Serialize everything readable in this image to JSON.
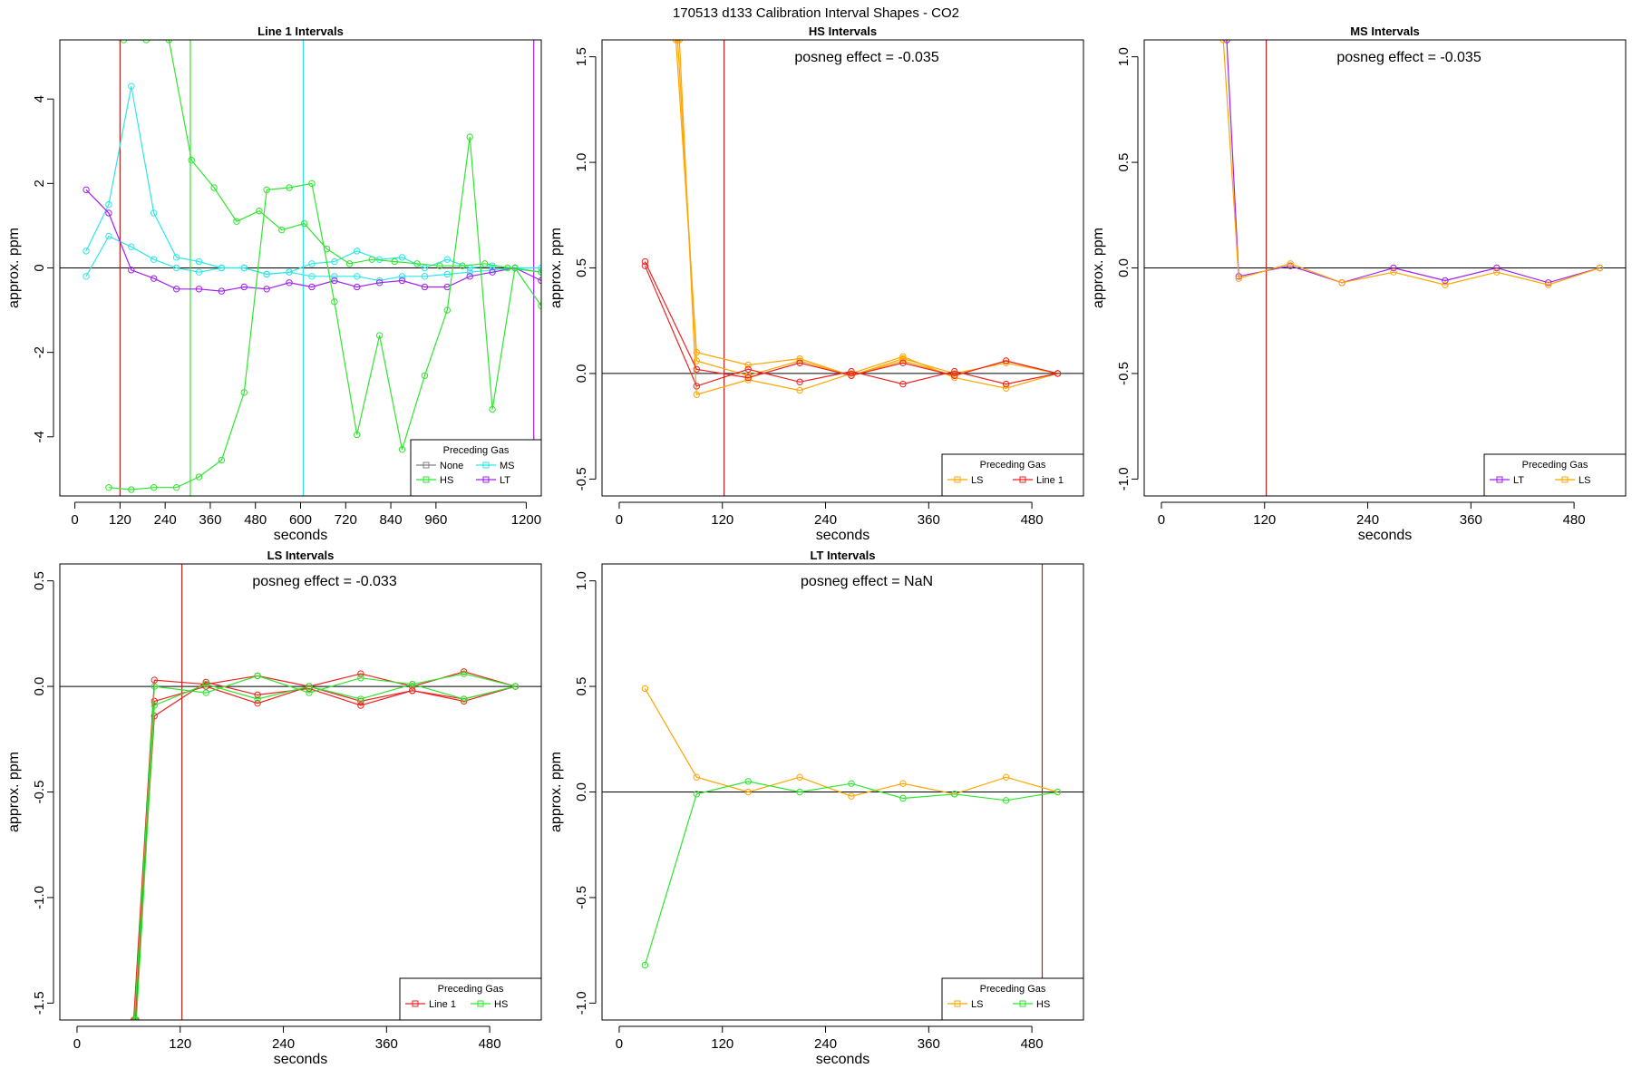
{
  "figure": {
    "title": "170513  d133   Calibration Interval Shapes - CO2"
  },
  "chart_data": [
    {
      "type": "line",
      "title": "Line 1 Intervals",
      "xlabel": "seconds",
      "ylabel": "approx. ppm",
      "xlim": [
        -40,
        1240
      ],
      "ylim": [
        -5.4,
        5.4
      ],
      "xticks": [
        0,
        120,
        240,
        360,
        480,
        600,
        720,
        840,
        960,
        1200
      ],
      "xtick_labels": [
        "0",
        "120",
        "240",
        "360",
        "480",
        "600",
        "720",
        "840",
        "960",
        "1200"
      ],
      "yticks": [
        -4,
        -2,
        0,
        2,
        4
      ],
      "ytick_labels": [
        "-4",
        "-2",
        "0",
        "2",
        "4"
      ],
      "hline": 0,
      "vlines": [
        {
          "x": 120,
          "color": "#b22222"
        },
        {
          "x": 307,
          "color": "#2ee62e"
        },
        {
          "x": 607,
          "color": "#2ee6e6"
        },
        {
          "x": 1220,
          "color": "#a020f0"
        }
      ],
      "annotation": "",
      "legend": {
        "title": "Preceding Gas",
        "position": "bottom-right",
        "columns": 2,
        "entries": [
          {
            "label": "None",
            "color": "#808080"
          },
          {
            "label": "HS",
            "color": "#2ee62e"
          },
          {
            "label": "MS",
            "color": "#2ee6e6"
          },
          {
            "label": "LT",
            "color": "#a020f0"
          }
        ]
      },
      "series": [
        {
          "color": "#2ee6e6",
          "x": [
            30,
            90,
            150,
            210,
            270,
            330,
            390,
            450,
            510,
            570,
            630,
            690,
            750,
            810,
            870,
            930,
            990,
            1050,
            1110,
            1170,
            1240
          ],
          "y": [
            -0.2,
            0.75,
            0.5,
            0.2,
            0.0,
            -0.1,
            0.0,
            0.0,
            -0.15,
            -0.1,
            -0.2,
            -0.2,
            -0.2,
            -0.3,
            -0.2,
            -0.2,
            -0.15,
            -0.1,
            -0.05,
            0.0,
            0.0
          ]
        },
        {
          "color": "#2ee6e6",
          "x": [
            30,
            90,
            150,
            210,
            270,
            330,
            390,
            450,
            510,
            570,
            630,
            690,
            750,
            810,
            870,
            930,
            990,
            1050,
            1110,
            1170,
            1240
          ],
          "y": [
            0.4,
            1.5,
            4.3,
            1.3,
            0.25,
            0.15,
            0.0,
            0.0,
            -0.15,
            -0.1,
            0.1,
            0.15,
            0.4,
            0.2,
            0.25,
            0.0,
            0.2,
            0.0,
            0.05,
            0.0,
            -0.1
          ]
        },
        {
          "color": "#a020f0",
          "x": [
            30,
            90,
            150,
            210,
            270,
            330,
            390,
            450,
            510,
            570,
            630,
            690,
            750,
            810,
            870,
            930,
            990,
            1050,
            1110,
            1170,
            1240
          ],
          "y": [
            1.85,
            1.3,
            -0.05,
            -0.25,
            -0.5,
            -0.5,
            -0.55,
            -0.45,
            -0.5,
            -0.35,
            -0.45,
            -0.3,
            -0.45,
            -0.35,
            -0.3,
            -0.45,
            -0.45,
            -0.2,
            -0.1,
            0.0,
            -0.3
          ]
        },
        {
          "color": "#2ee62e",
          "x": [
            130,
            190,
            250,
            310,
            370,
            430,
            490,
            550,
            610,
            670,
            730,
            790,
            850,
            910,
            970,
            1030,
            1090,
            1150,
            1240
          ],
          "y": [
            5.4,
            5.4,
            5.4,
            2.55,
            1.9,
            1.1,
            1.35,
            0.9,
            1.05,
            0.45,
            0.1,
            0.2,
            0.15,
            0.1,
            0.05,
            0.05,
            0.1,
            0.0,
            -0.1
          ]
        },
        {
          "color": "#2ee62e",
          "x": [
            90,
            150,
            210,
            270,
            330,
            390,
            450,
            510,
            570,
            630,
            690,
            750,
            810,
            870,
            930,
            990,
            1050,
            1110,
            1170,
            1240
          ],
          "y": [
            -5.2,
            -5.25,
            -5.2,
            -5.2,
            -4.95,
            -4.55,
            -2.95,
            1.85,
            1.9,
            2.0,
            -0.8,
            -3.95,
            -1.6,
            -4.3,
            -2.55,
            -1.0,
            3.1,
            -3.35,
            0.0,
            -0.9
          ]
        }
      ]
    },
    {
      "type": "line",
      "title": "HS Intervals",
      "xlabel": "seconds",
      "ylabel": "approx. ppm",
      "xlim": [
        -20,
        540
      ],
      "ylim": [
        -0.58,
        1.58
      ],
      "xticks": [
        0,
        120,
        240,
        360,
        480
      ],
      "xtick_labels": [
        "0",
        "120",
        "240",
        "360",
        "480"
      ],
      "yticks": [
        -0.5,
        0.0,
        0.5,
        1.0,
        1.5
      ],
      "ytick_labels": [
        "-0.5",
        "0.0",
        "0.5",
        "1.0",
        "1.5"
      ],
      "hline": 0,
      "vlines": [
        {
          "x": 122,
          "color": "#b22222"
        }
      ],
      "annotation": "posneg effect = -0.035",
      "legend": {
        "title": "Preceding Gas",
        "position": "bottom-right",
        "columns": 2,
        "entries": [
          {
            "label": "LS",
            "color": "#ffa500"
          },
          {
            "label": "Line 1",
            "color": "#ee2222"
          }
        ]
      },
      "series": [
        {
          "color": "#ffa500",
          "x": [
            66,
            90,
            150,
            210,
            270,
            330,
            390,
            450,
            510
          ],
          "y": [
            1.58,
            0.1,
            0.04,
            0.07,
            -0.01,
            0.07,
            0.0,
            0.05,
            0.0
          ]
        },
        {
          "color": "#ffa500",
          "x": [
            68,
            90,
            150,
            210,
            270,
            330,
            390,
            450,
            510
          ],
          "y": [
            1.58,
            0.06,
            -0.01,
            0.06,
            -0.01,
            0.06,
            -0.01,
            0.06,
            0.0
          ]
        },
        {
          "color": "#ffa500",
          "x": [
            70,
            90,
            150,
            210,
            270,
            330,
            390,
            450,
            510
          ],
          "y": [
            1.58,
            -0.1,
            -0.03,
            -0.08,
            0.0,
            0.08,
            -0.02,
            -0.07,
            0.0
          ]
        },
        {
          "color": "#ee2222",
          "x": [
            30,
            90,
            150,
            210,
            270,
            330,
            390,
            450,
            510
          ],
          "y": [
            0.53,
            0.02,
            -0.02,
            0.05,
            -0.01,
            0.05,
            -0.01,
            0.06,
            0.0
          ]
        },
        {
          "color": "#ee2222",
          "x": [
            30,
            90,
            150,
            210,
            270,
            330,
            390,
            450,
            510
          ],
          "y": [
            0.51,
            -0.06,
            0.02,
            -0.04,
            0.01,
            -0.05,
            0.01,
            -0.05,
            0.0
          ]
        }
      ]
    },
    {
      "type": "line",
      "title": "MS Intervals",
      "xlabel": "seconds",
      "ylabel": "approx. ppm",
      "xlim": [
        -20,
        540
      ],
      "ylim": [
        -1.08,
        1.08
      ],
      "xticks": [
        0,
        120,
        240,
        360,
        480
      ],
      "xtick_labels": [
        "0",
        "120",
        "240",
        "360",
        "480"
      ],
      "yticks": [
        -1.0,
        -0.5,
        0.0,
        0.5,
        1.0
      ],
      "ytick_labels": [
        "-1.0",
        "-0.5",
        "0.0",
        "0.5",
        "1.0"
      ],
      "hline": 0,
      "vlines": [
        {
          "x": 122,
          "color": "#b22222"
        }
      ],
      "annotation": "posneg effect = -0.035",
      "legend": {
        "title": "Preceding Gas",
        "position": "bottom-right",
        "columns": 2,
        "entries": [
          {
            "label": "LT",
            "color": "#a020f0"
          },
          {
            "label": "LS",
            "color": "#ffa500"
          }
        ]
      },
      "series": [
        {
          "color": "#a020f0",
          "x": [
            76,
            90,
            150,
            210,
            270,
            330,
            390,
            450,
            510
          ],
          "y": [
            1.08,
            -0.04,
            0.01,
            -0.07,
            0.0,
            -0.06,
            0.0,
            -0.07,
            0.0
          ]
        },
        {
          "color": "#ffa500",
          "x": [
            72,
            90,
            150,
            210,
            270,
            330,
            390,
            450,
            510
          ],
          "y": [
            1.08,
            -0.05,
            0.02,
            -0.07,
            -0.02,
            -0.08,
            -0.02,
            -0.08,
            0.0
          ]
        }
      ]
    },
    {
      "type": "line",
      "title": "LS Intervals",
      "xlabel": "seconds",
      "ylabel": "approx. ppm",
      "xlim": [
        -20,
        540
      ],
      "ylim": [
        -1.58,
        0.58
      ],
      "xticks": [
        0,
        120,
        240,
        360,
        480
      ],
      "xtick_labels": [
        "0",
        "120",
        "240",
        "360",
        "480"
      ],
      "yticks": [
        -1.5,
        -1.0,
        -0.5,
        0.0,
        0.5
      ],
      "ytick_labels": [
        "-1.5",
        "-1.0",
        "-0.5",
        "0.0",
        "0.5"
      ],
      "hline": 0,
      "vlines": [
        {
          "x": 122,
          "color": "#b22222"
        }
      ],
      "annotation": "posneg effect = -0.033",
      "legend": {
        "title": "Preceding Gas",
        "position": "bottom-right",
        "columns": 2,
        "entries": [
          {
            "label": "Line 1",
            "color": "#ee2222"
          },
          {
            "label": "HS",
            "color": "#2ee62e"
          }
        ]
      },
      "series": [
        {
          "color": "#ee2222",
          "x": [
            66,
            90,
            150,
            210,
            270,
            330,
            390,
            450,
            510
          ],
          "y": [
            -1.58,
            0.03,
            0.01,
            0.05,
            0.0,
            0.06,
            0.0,
            0.07,
            0.0
          ]
        },
        {
          "color": "#ee2222",
          "x": [
            67,
            90,
            150,
            210,
            270,
            330,
            390,
            450,
            510
          ],
          "y": [
            -1.58,
            -0.14,
            0.02,
            -0.04,
            -0.01,
            -0.09,
            -0.02,
            -0.06,
            0.0
          ]
        },
        {
          "color": "#ee2222",
          "x": [
            68,
            90,
            150,
            210,
            270,
            330,
            390,
            450,
            510
          ],
          "y": [
            -1.58,
            -0.07,
            0.0,
            -0.08,
            0.0,
            -0.07,
            -0.02,
            -0.07,
            0.0
          ]
        },
        {
          "color": "#2ee62e",
          "x": [
            67,
            90,
            150,
            210,
            270,
            330,
            390,
            450,
            510
          ],
          "y": [
            -1.58,
            0.0,
            -0.03,
            0.05,
            -0.03,
            0.04,
            0.01,
            0.06,
            0.0
          ]
        },
        {
          "color": "#2ee62e",
          "x": [
            69,
            90,
            150,
            210,
            270,
            330,
            390,
            450,
            510
          ],
          "y": [
            -1.58,
            -0.09,
            0.01,
            -0.06,
            0.0,
            -0.06,
            0.01,
            -0.06,
            0.0
          ]
        }
      ]
    },
    {
      "type": "line",
      "title": "LT Intervals",
      "xlabel": "seconds",
      "ylabel": "approx. ppm",
      "xlim": [
        -20,
        540
      ],
      "ylim": [
        -1.08,
        1.08
      ],
      "xticks": [
        0,
        120,
        240,
        360,
        480
      ],
      "xtick_labels": [
        "0",
        "120",
        "240",
        "360",
        "480"
      ],
      "yticks": [
        -1.0,
        -0.5,
        0.0,
        0.5,
        1.0
      ],
      "ytick_labels": [
        "-1.0",
        "-0.5",
        "0.0",
        "0.5",
        "1.0"
      ],
      "hline": 0,
      "vlines": [
        {
          "x": 492,
          "color": "#b22222"
        }
      ],
      "annotation": "posneg effect = NaN",
      "legend": {
        "title": "Preceding Gas",
        "position": "bottom-right",
        "columns": 2,
        "entries": [
          {
            "label": "LS",
            "color": "#ffa500"
          },
          {
            "label": "HS",
            "color": "#2ee62e"
          }
        ]
      },
      "series": [
        {
          "color": "#ffa500",
          "x": [
            30,
            90,
            150,
            210,
            270,
            330,
            390,
            450,
            510
          ],
          "y": [
            0.49,
            0.07,
            0.0,
            0.07,
            -0.02,
            0.04,
            -0.01,
            0.07,
            0.0
          ]
        },
        {
          "color": "#2ee62e",
          "x": [
            30,
            90,
            150,
            210,
            270,
            330,
            390,
            450,
            510
          ],
          "y": [
            -0.82,
            -0.01,
            0.05,
            0.0,
            0.04,
            -0.03,
            -0.01,
            -0.04,
            0.0
          ]
        }
      ]
    }
  ]
}
